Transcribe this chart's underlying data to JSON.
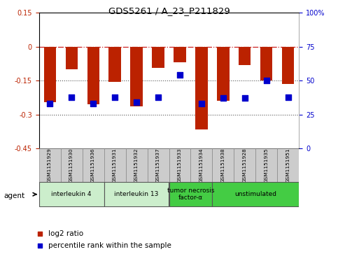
{
  "title": "GDS5261 / A_23_P211829",
  "samples": [
    "GSM1151929",
    "GSM1151930",
    "GSM1151936",
    "GSM1151931",
    "GSM1151932",
    "GSM1151937",
    "GSM1151933",
    "GSM1151934",
    "GSM1151938",
    "GSM1151928",
    "GSM1151935",
    "GSM1151951"
  ],
  "log2_ratio": [
    -0.245,
    -0.1,
    -0.255,
    -0.155,
    -0.265,
    -0.095,
    -0.07,
    -0.365,
    -0.24,
    -0.08,
    -0.15,
    -0.165
  ],
  "percentile_rank": [
    33,
    38,
    33,
    38,
    34,
    38,
    54,
    33,
    37,
    37,
    50,
    38
  ],
  "bar_color": "#bb2200",
  "dot_color": "#0000cc",
  "ylim_left": [
    -0.45,
    0.15
  ],
  "ylim_right": [
    0,
    100
  ],
  "yticks_left": [
    0.15,
    0.0,
    -0.15,
    -0.3,
    -0.45
  ],
  "yticks_right": [
    100,
    75,
    50,
    25,
    0
  ],
  "group_spans": [
    {
      "start": 0,
      "end": 2,
      "label": "interleukin 4",
      "color": "#cceecc"
    },
    {
      "start": 3,
      "end": 5,
      "label": "interleukin 13",
      "color": "#cceecc"
    },
    {
      "start": 6,
      "end": 7,
      "label": "tumor necrosis\nfactor-α",
      "color": "#44cc44"
    },
    {
      "start": 8,
      "end": 11,
      "label": "unstimulated",
      "color": "#44cc44"
    }
  ],
  "hline_0_color": "#cc2222",
  "hline_m015_color": "#555555",
  "hline_m030_color": "#555555",
  "sample_box_color": "#cccccc",
  "bar_width": 0.55,
  "dot_size": 28,
  "legend_red_label": "log2 ratio",
  "legend_blue_label": "percentile rank within the sample",
  "agent_label": "agent"
}
